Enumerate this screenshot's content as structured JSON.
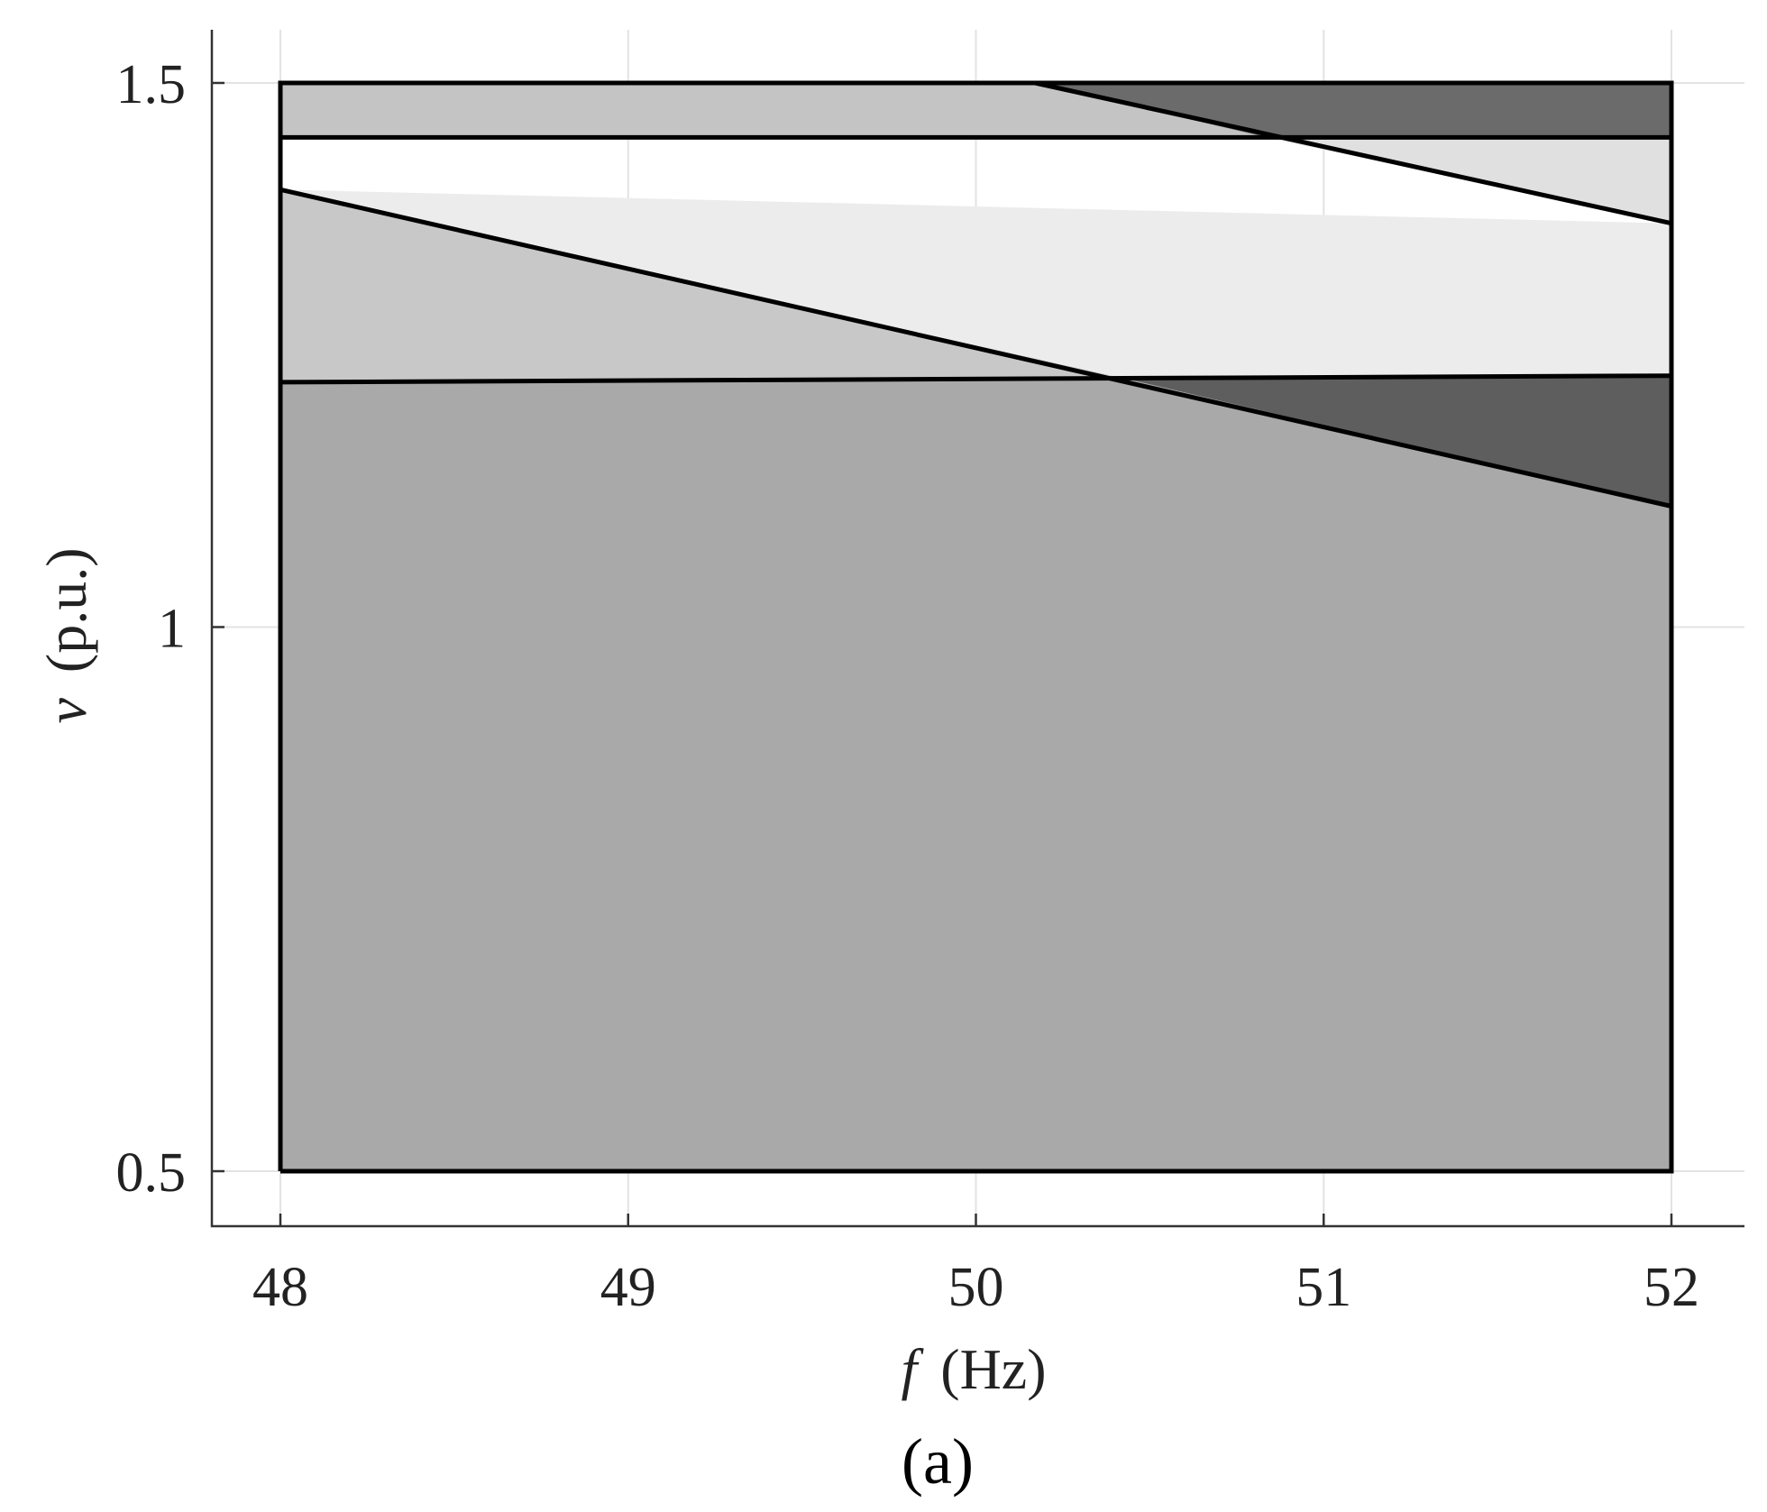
{
  "chart_data": {
    "type": "area",
    "xlabel": "f",
    "xlabel_unit": "(Hz)",
    "ylabel": "v",
    "ylabel_unit": "(p.u.)",
    "panel_label": "(a)",
    "xlim": [
      47.8,
      52.2
    ],
    "ylim": [
      0.45,
      1.55
    ],
    "x_ticks": [
      48,
      49,
      50,
      51,
      52
    ],
    "x_tick_labels": [
      "48",
      "49",
      "50",
      "51",
      "52"
    ],
    "y_ticks": [
      0.5,
      1.0,
      1.5
    ],
    "y_tick_labels": [
      "0.5",
      "1",
      "1.5"
    ],
    "grid": true,
    "regions": [
      {
        "color": "#a9a9a9",
        "polygon": [
          [
            48,
            0.5
          ],
          [
            52,
            0.5
          ],
          [
            52,
            1.111
          ],
          [
            50.42,
            1.229
          ],
          [
            48,
            1.225
          ]
        ]
      },
      {
        "color": "#5e5e5e",
        "polygon": [
          [
            50.42,
            1.229
          ],
          [
            52,
            1.231
          ],
          [
            52,
            1.111
          ]
        ]
      },
      {
        "color": "#c8c8c8",
        "polygon": [
          [
            48,
            1.225
          ],
          [
            50.42,
            1.229
          ],
          [
            48,
            1.402
          ]
        ]
      },
      {
        "color": "#ececec",
        "polygon": [
          [
            48,
            1.402
          ],
          [
            52,
            1.371
          ],
          [
            52,
            1.231
          ],
          [
            50.42,
            1.229
          ]
        ]
      },
      {
        "color": "#e0e0e0",
        "polygon": [
          [
            50.85,
            1.449
          ],
          [
            52,
            1.45
          ],
          [
            52,
            1.371
          ]
        ]
      },
      {
        "color": "#c4c4c4",
        "polygon": [
          [
            48,
            1.45
          ],
          [
            48,
            1.5
          ],
          [
            50.17,
            1.5
          ],
          [
            50.85,
            1.449
          ]
        ]
      },
      {
        "color": "#6b6b6b",
        "polygon": [
          [
            50.17,
            1.5
          ],
          [
            52,
            1.5
          ],
          [
            52,
            1.45
          ],
          [
            50.85,
            1.449
          ]
        ]
      }
    ],
    "boundaries": [
      [
        [
          48,
          0.5
        ],
        [
          52,
          0.5
        ],
        [
          52,
          1.5
        ],
        [
          48,
          1.5
        ],
        [
          48,
          0.5
        ]
      ],
      [
        [
          48,
          1.225
        ],
        [
          52,
          1.231
        ]
      ],
      [
        [
          48,
          1.45
        ],
        [
          52,
          1.45
        ]
      ],
      [
        [
          48,
          1.402
        ],
        [
          52,
          1.111
        ]
      ],
      [
        [
          50.17,
          1.5
        ],
        [
          52,
          1.371
        ]
      ]
    ]
  }
}
